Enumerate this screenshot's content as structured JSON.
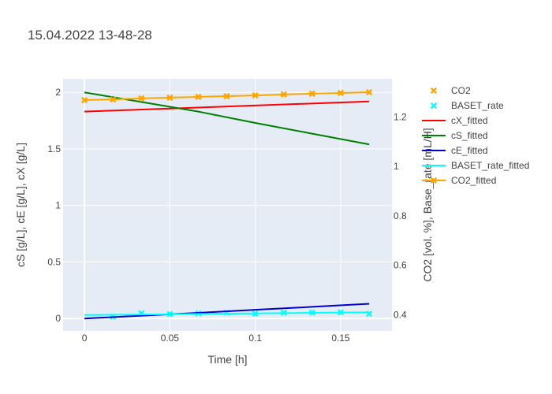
{
  "chart_data": {
    "type": "line",
    "title": "15.04.2022 13-48-28",
    "xlabel": "Time [h]",
    "ylabel": "cS [g/L], cE [g/L], cX [g/L]",
    "y2label": "CO2 [vol. %], Base_rate [mL/H]",
    "xlim": [
      -0.0125,
      0.18
    ],
    "ylim": [
      -0.11,
      2.12
    ],
    "y2lim": [
      0.3346,
      1.3542
    ],
    "xticks": [
      0,
      0.05,
      0.1,
      0.15
    ],
    "xtick_labels": [
      "0",
      "0.05",
      "0.1",
      "0.15"
    ],
    "yticks": [
      0,
      0.5,
      1,
      1.5,
      2
    ],
    "ytick_labels": [
      "0",
      "0.5",
      "1",
      "1.5",
      "2"
    ],
    "y2ticks": [
      0.4,
      0.6,
      0.8,
      1,
      1.2
    ],
    "y2tick_labels": [
      "0.4",
      "0.6",
      "0.8",
      "1",
      "1.2"
    ],
    "grid": true,
    "legend_position": "top-right",
    "series": [
      {
        "name": "CO2",
        "axis": "y2",
        "mode": "markers",
        "color": "#ffa500",
        "x": [
          0,
          0.0167,
          0.0333,
          0.05,
          0.0667,
          0.0833,
          0.1,
          0.1167,
          0.1333,
          0.15,
          0.1667
        ],
        "y": [
          1.268,
          1.271,
          1.275,
          1.278,
          1.281,
          1.284,
          1.287,
          1.291,
          1.294,
          1.297,
          1.3
        ]
      },
      {
        "name": "BASET_rate",
        "axis": "y2",
        "mode": "markers",
        "color": "#00ffff",
        "x": [
          0.0167,
          0.0333,
          0.05,
          0.0667,
          0.0833,
          0.1,
          0.1167,
          0.1333,
          0.15,
          0.1667
        ],
        "y": [
          0.393,
          0.406,
          0.403,
          0.406,
          0.408,
          0.405,
          0.408,
          0.409,
          0.41,
          0.404
        ]
      },
      {
        "name": "cX_fitted",
        "axis": "y",
        "mode": "lines",
        "color": "#ff0000",
        "x": [
          0,
          0.1667
        ],
        "y": [
          1.83,
          1.92
        ]
      },
      {
        "name": "cS_fitted",
        "axis": "y",
        "mode": "lines",
        "color": "#008000",
        "x": [
          0,
          0.0333,
          0.0667,
          0.1,
          0.1333,
          0.1667
        ],
        "y": [
          2.0,
          1.915,
          1.83,
          1.73,
          1.635,
          1.54
        ]
      },
      {
        "name": "cE_fitted",
        "axis": "y",
        "mode": "lines",
        "color": "#0000cd",
        "x": [
          0,
          0.0333,
          0.0667,
          0.1,
          0.1333,
          0.1667
        ],
        "y": [
          0.0,
          0.025,
          0.05,
          0.077,
          0.103,
          0.13
        ]
      },
      {
        "name": "BASET_rate_fitted",
        "axis": "y2",
        "mode": "lines",
        "color": "#00ffff",
        "x": [
          0,
          0.1667
        ],
        "y": [
          0.399,
          0.41
        ]
      },
      {
        "name": "CO2_fitted",
        "axis": "y2",
        "mode": "lines+markers",
        "color": "#ffa500",
        "x": [
          0,
          0.0167,
          0.0333,
          0.05,
          0.0667,
          0.0833,
          0.1,
          0.1167,
          0.1333,
          0.15,
          0.1667
        ],
        "y": [
          1.268,
          1.271,
          1.275,
          1.278,
          1.281,
          1.284,
          1.287,
          1.291,
          1.294,
          1.297,
          1.3
        ]
      }
    ]
  }
}
